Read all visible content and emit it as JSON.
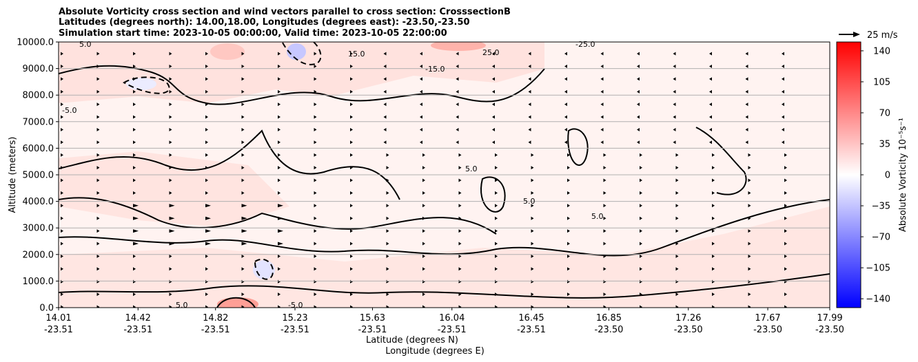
{
  "chart_data": {
    "type": "heatmap",
    "title_lines": [
      "Absolute Vorticity cross section and wind vectors parallel to cross section: CrosssectionB",
      "Latitudes (degrees north): 14.00,18.00, Longitudes (degrees east): -23.50,-23.50",
      "Simulation start time: 2023-10-05 00:00:00, Valid time: 2023-10-05 22:00:00"
    ],
    "xlabel_lat": "Latitude (degrees N)",
    "xlabel_lon": "Longitude (degrees E)",
    "ylabel": "Altitude (meters)",
    "ylim": [
      0,
      10000
    ],
    "y_ticks": [
      "0.0",
      "1000.0",
      "2000.0",
      "3000.0",
      "4000.0",
      "5000.0",
      "6000.0",
      "7000.0",
      "8000.0",
      "9000.0",
      "10000.0"
    ],
    "x_ticks": [
      {
        "lat": "14.01",
        "lon": "-23.51"
      },
      {
        "lat": "14.42",
        "lon": "-23.51"
      },
      {
        "lat": "14.82",
        "lon": "-23.51"
      },
      {
        "lat": "15.23",
        "lon": "-23.51"
      },
      {
        "lat": "15.63",
        "lon": "-23.51"
      },
      {
        "lat": "16.04",
        "lon": "-23.51"
      },
      {
        "lat": "16.45",
        "lon": "-23.51"
      },
      {
        "lat": "16.85",
        "lon": "-23.50"
      },
      {
        "lat": "17.26",
        "lon": "-23.50"
      },
      {
        "lat": "17.67",
        "lon": "-23.50"
      },
      {
        "lat": "17.99",
        "lon": "-23.50"
      }
    ],
    "grid": "horizontal",
    "colorbar": {
      "label": "Absolute Vorticity 10⁻⁵s⁻¹",
      "range": [
        -150,
        150
      ],
      "ticks": [
        "140",
        "105",
        "70",
        "35",
        "0",
        "−35",
        "−70",
        "−105",
        "−140"
      ],
      "colormap": "bwr"
    },
    "quiver_key": "25 m/s",
    "contour_labels": [
      "5.0",
      "-5.0",
      "15.0",
      "-15.0",
      "25.0",
      "-25.0"
    ],
    "colors": {
      "positive": "#ff0000",
      "negative": "#0000ff",
      "zero": "#ffffff",
      "contour": "#000000"
    }
  }
}
